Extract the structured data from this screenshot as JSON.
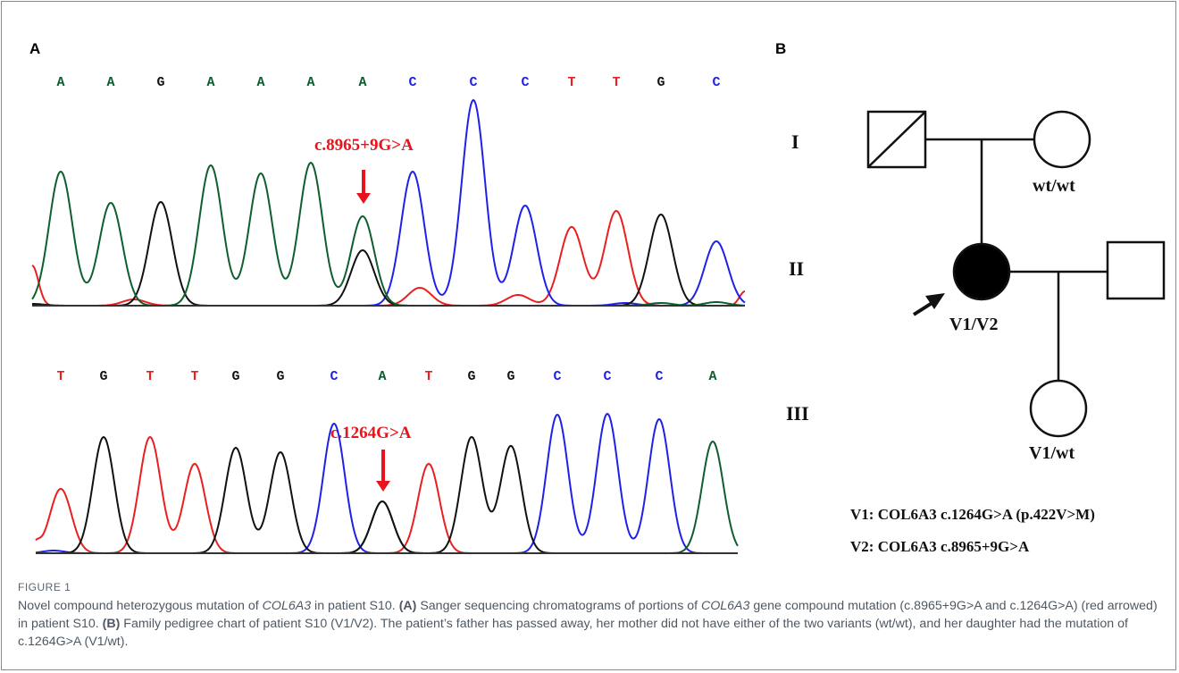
{
  "panel_a_label": "A",
  "panel_b_label": "B",
  "colors": {
    "A": "#0e5e2e",
    "C": "#1f20e8",
    "G": "#111111",
    "T": "#ea1f1f",
    "mut": "#e8131b"
  },
  "top_trace": {
    "bases": [
      "A",
      "A",
      "G",
      "A",
      "A",
      "A",
      "A",
      "C",
      "C",
      "C",
      "T",
      "T",
      "G",
      "C"
    ],
    "mutation_label": "c.8965+9G>A"
  },
  "bottom_trace": {
    "bases": [
      "T",
      "G",
      "T",
      "T",
      "G",
      "G",
      "C",
      "A",
      "T",
      "G",
      "G",
      "C",
      "C",
      "C",
      "A"
    ],
    "mutation_label": "c.1264G>A"
  },
  "pedigree": {
    "generations": [
      "I",
      "II",
      "III"
    ],
    "mother_genotype": "wt/wt",
    "proband_genotype": "V1/V2",
    "daughter_genotype": "V1/wt",
    "v1_definition": "V1: COL6A3 c.1264G>A (p.422V>M)",
    "v2_definition": "V2: COL6A3 c.8965+9G>A"
  },
  "figure_label": "FIGURE 1",
  "caption": {
    "title_pre": "Novel compound heterozygous mutation of ",
    "title_gene": "COL6A3",
    "title_post": " in patient S10. ",
    "a_tag": "(A)",
    "a_pre": " Sanger sequencing chromatograms of portions of ",
    "a_gene": "COL6A3",
    "a_post": " gene compound mutation (c.8965+9G>A and c.1264G>A) (red arrowed) in patient S10. ",
    "b_tag": "(B)",
    "b_text": " Family pedigree chart of patient S10 (V1/V2). The patient’s father has passed away, her mother did not have either of the two variants (wt/wt), and her daughter had the mutation of c.1264G>A (V1/wt)."
  }
}
